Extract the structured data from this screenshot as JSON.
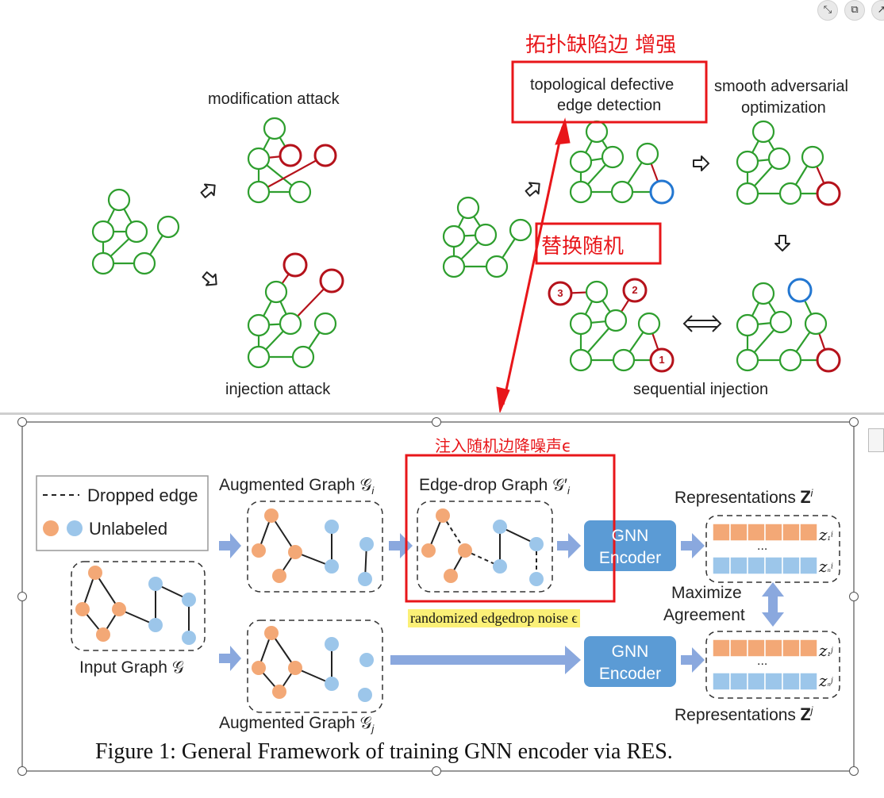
{
  "toolbar": {
    "collapse_icon": "⤡",
    "copy_icon": "⧉",
    "open_icon": "↗"
  },
  "top_left": {
    "modification_label": "modification attack",
    "injection_label": "injection attack"
  },
  "top_right": {
    "detection_label_line1": "topological defective",
    "detection_label_line2": "edge detection",
    "smooth_label_line1": "smooth adversarial",
    "smooth_label_line2": "optimization",
    "sequential_label": "sequential injection",
    "step_numbers": [
      "3",
      "2",
      "1"
    ]
  },
  "annotations": {
    "cn_top": "拓扑缺陷边  增强",
    "cn_mid": "替换随机",
    "cn_bottom": "注入随机边降噪声ϵ",
    "yellow_note": "randomized edgedrop noise ϵ"
  },
  "figure": {
    "legend_dropped": "Dropped edge",
    "legend_unlabeled": "Unlabeled",
    "aug_top": "Augmented Graph 𝒢",
    "aug_top_sub": "i",
    "edge_drop": "Edge-drop Graph 𝒢′",
    "edge_drop_sub": "i",
    "input_graph": "Input Graph 𝒢",
    "aug_bottom": "Augmented Graph 𝒢",
    "aug_bottom_sub": "j",
    "gnn_line1": "GNN",
    "gnn_line2": "Encoder",
    "repr_top": "Representations 𝐙",
    "repr_top_sup": "i",
    "repr_bottom": "Representations 𝐙",
    "repr_bottom_sup": "j",
    "maximize_line1": "Maximize",
    "maximize_line2": "Agreement",
    "z1_top": "z",
    "zn_top": "z",
    "ellipsis": "...",
    "caption": "Figure 1: General Framework of training GNN encoder via RES."
  },
  "colors": {
    "green": "#2e9e2e",
    "dark_red": "#b5121b",
    "blue_node": "#2377d1",
    "annotation_red": "#e8161a",
    "orange_node": "#f3a876",
    "blue_light": "#9cc6ea",
    "gnn_box": "#5b9bd5",
    "arrow_blue": "#8aa8de"
  }
}
